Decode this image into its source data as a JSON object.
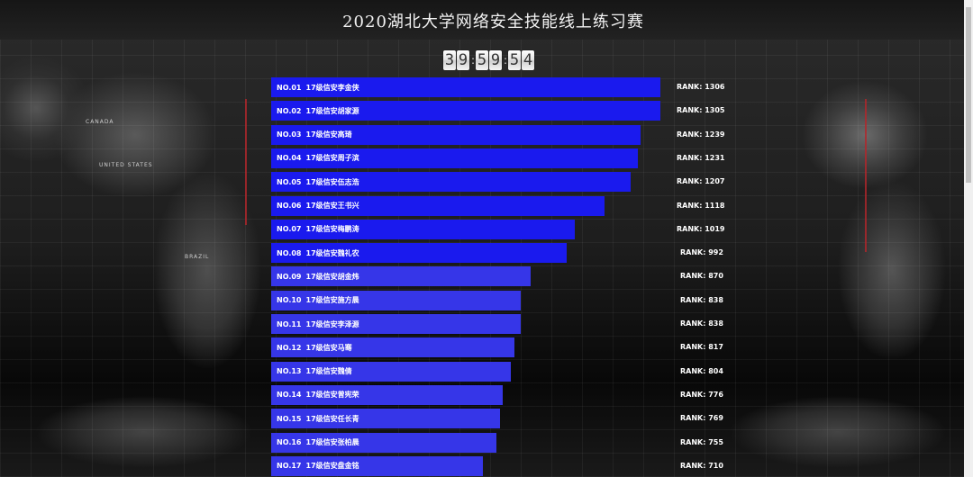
{
  "title": "2020湖北大学网络安全技能线上练习赛",
  "timer": {
    "digits": [
      "3",
      "9",
      "5",
      "9",
      "5",
      "4"
    ],
    "separator": ":"
  },
  "map_labels": [
    "CANADA",
    "UNITED STATES",
    "BRAZIL"
  ],
  "colors": {
    "bar_top": "#1a1aee",
    "bar_bottom": "#3636e8",
    "background": "#101010",
    "border_line": "#b3262b"
  },
  "rankings": [
    {
      "no": "NO.01",
      "name": "17级信安李金侠",
      "score_label": "RANK: 1306",
      "score": 1306
    },
    {
      "no": "NO.02",
      "name": "17级信安胡家源",
      "score_label": "RANK: 1305",
      "score": 1305
    },
    {
      "no": "NO.03",
      "name": "17级信安高琦",
      "score_label": "RANK: 1239",
      "score": 1239
    },
    {
      "no": "NO.04",
      "name": "17级信安周子滨",
      "score_label": "RANK: 1231",
      "score": 1231
    },
    {
      "no": "NO.05",
      "name": "17级信安伍志浩",
      "score_label": "RANK: 1207",
      "score": 1207
    },
    {
      "no": "NO.06",
      "name": "17级信安王书兴",
      "score_label": "RANK: 1118",
      "score": 1118
    },
    {
      "no": "NO.07",
      "name": "17级信安梅鹏涛",
      "score_label": "RANK: 1019",
      "score": 1019
    },
    {
      "no": "NO.08",
      "name": "17级信安魏礼农",
      "score_label": "RANK: 992",
      "score": 992
    },
    {
      "no": "NO.09",
      "name": "17级信安胡金炜",
      "score_label": "RANK: 870",
      "score": 870
    },
    {
      "no": "NO.10",
      "name": "17级信安施方晨",
      "score_label": "RANK: 838",
      "score": 838
    },
    {
      "no": "NO.11",
      "name": "17级信安李泽源",
      "score_label": "RANK: 838",
      "score": 838
    },
    {
      "no": "NO.12",
      "name": "17级信安马骞",
      "score_label": "RANK: 817",
      "score": 817
    },
    {
      "no": "NO.13",
      "name": "17级信安魏倩",
      "score_label": "RANK: 804",
      "score": 804
    },
    {
      "no": "NO.14",
      "name": "17级信安曾宪荣",
      "score_label": "RANK: 776",
      "score": 776
    },
    {
      "no": "NO.15",
      "name": "17级信安任长青",
      "score_label": "RANK: 769",
      "score": 769
    },
    {
      "no": "NO.16",
      "name": "17级信安张柏晨",
      "score_label": "RANK: 755",
      "score": 755
    },
    {
      "no": "NO.17",
      "name": "17级信安盘金铭",
      "score_label": "RANK: 710",
      "score": 710
    }
  ]
}
